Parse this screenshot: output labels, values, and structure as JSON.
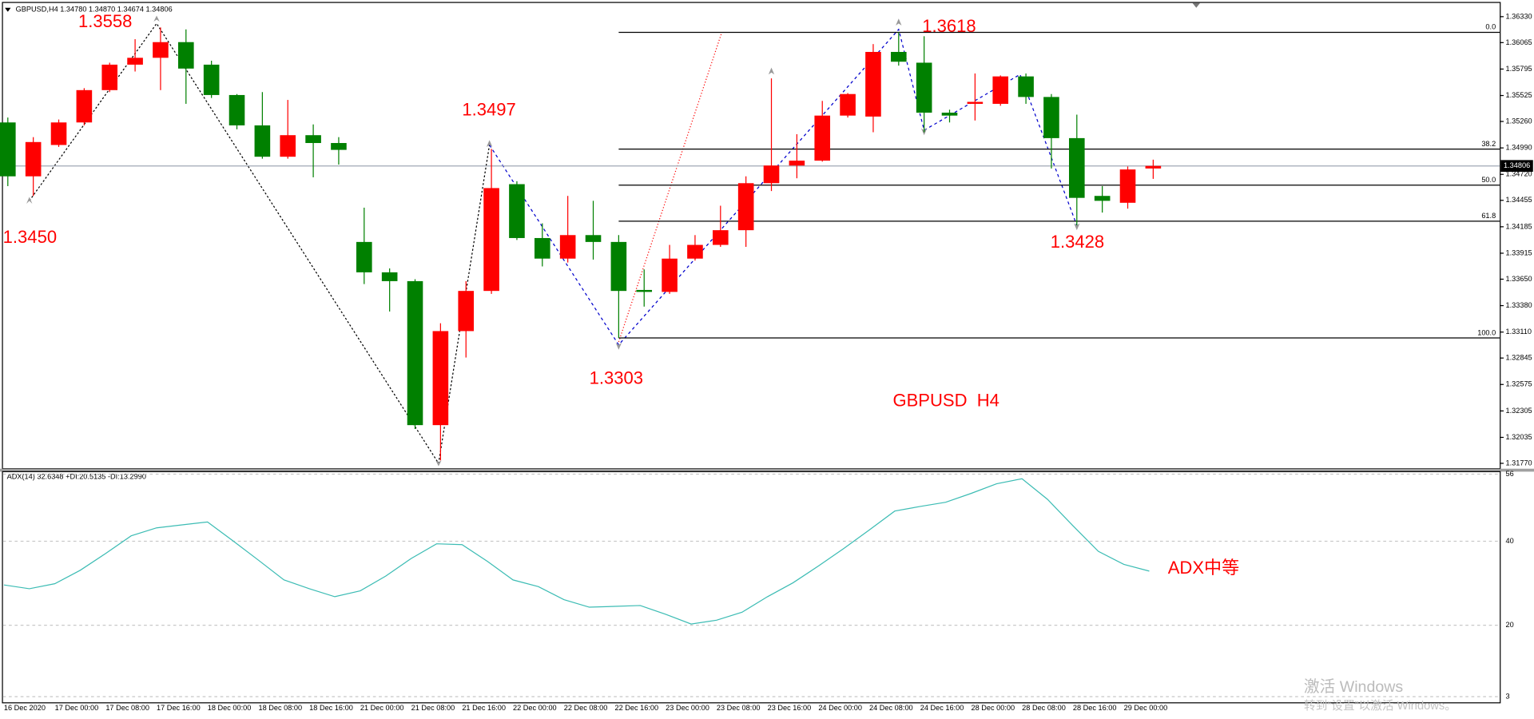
{
  "chart_data": {
    "type": "candlestick",
    "title": "GBPUSD,H4  1.34780 1.34870 1.34674 1.34806",
    "categories": [
      "16 Dec 2020",
      null,
      "17 Dec 00:00",
      null,
      "17 Dec 08:00",
      null,
      "17 Dec 16:00",
      null,
      "18 Dec 00:00",
      null,
      "18 Dec 08:00",
      null,
      "18 Dec 16:00",
      null,
      "21 Dec 00:00",
      null,
      "21 Dec 08:00",
      null,
      "21 Dec 16:00",
      null,
      "22 Dec 00:00",
      null,
      "22 Dec 08:00",
      null,
      "22 Dec 16:00",
      null,
      "23 Dec 00:00",
      null,
      "23 Dec 08:00",
      null,
      "23 Dec 16:00",
      null,
      "24 Dec 00:00",
      null,
      "24 Dec 08:00",
      null,
      "24 Dec 16:00",
      null,
      "28 Dec 00:00",
      null,
      "28 Dec 08:00",
      null,
      "28 Dec 16:00",
      null,
      "29 Dec 00:00",
      null
    ],
    "open": [
      1.3525,
      1.347,
      1.3502,
      1.3525,
      1.3558,
      1.3584,
      1.3591,
      1.3607,
      1.3584,
      1.3553,
      1.3522,
      1.349,
      1.3512,
      1.3504,
      1.3403,
      1.3372,
      1.3363,
      1.3216,
      1.3312,
      1.3353,
      1.3462,
      1.3407,
      1.3386,
      1.341,
      1.3403,
      1.3354,
      1.3352,
      1.3386,
      1.34,
      1.3415,
      1.3463,
      1.3481,
      1.3486,
      1.3532,
      1.3531,
      1.3597,
      1.3586,
      1.3535,
      1.3544,
      1.3544,
      1.3572,
      1.3551,
      1.3509,
      1.345,
      1.3443,
      1.3478
    ],
    "high": [
      1.353,
      1.351,
      1.3528,
      1.356,
      1.3586,
      1.361,
      1.3622,
      1.362,
      1.3588,
      1.3554,
      1.3556,
      1.3548,
      1.3523,
      1.351,
      1.3438,
      1.3376,
      1.3365,
      1.332,
      1.3363,
      1.3498,
      1.3465,
      1.3422,
      1.345,
      1.3445,
      1.341,
      1.3375,
      1.34,
      1.341,
      1.344,
      1.347,
      1.357,
      1.3513,
      1.3547,
      1.3555,
      1.3605,
      1.3617,
      1.3613,
      1.3538,
      1.3575,
      1.3573,
      1.3575,
      1.3554,
      1.3533,
      1.346,
      1.348,
      1.3487
    ],
    "low": [
      1.346,
      1.345,
      1.35,
      1.3522,
      1.3556,
      1.3577,
      1.3558,
      1.3544,
      1.355,
      1.3518,
      1.3488,
      1.3488,
      1.3469,
      1.3482,
      1.336,
      1.3332,
      1.3212,
      1.318,
      1.3285,
      1.335,
      1.3405,
      1.3378,
      1.3382,
      1.3385,
      1.3305,
      1.3337,
      1.335,
      1.3384,
      1.3398,
      1.3398,
      1.3455,
      1.3468,
      1.3485,
      1.353,
      1.3515,
      1.3583,
      1.3515,
      1.3525,
      1.3527,
      1.3542,
      1.3544,
      1.3478,
      1.342,
      1.3433,
      1.3437,
      1.34674
    ],
    "close": [
      1.347,
      1.3505,
      1.3525,
      1.3558,
      1.3584,
      1.3591,
      1.3607,
      1.358,
      1.3553,
      1.3522,
      1.349,
      1.3512,
      1.3504,
      1.3497,
      1.3372,
      1.3363,
      1.3216,
      1.3312,
      1.3353,
      1.3458,
      1.3407,
      1.3386,
      1.341,
      1.3403,
      1.3353,
      1.3352,
      1.3386,
      1.34,
      1.3415,
      1.3463,
      1.3481,
      1.3486,
      1.3532,
      1.3554,
      1.3597,
      1.3587,
      1.3535,
      1.3532,
      1.3546,
      1.3572,
      1.3551,
      1.3509,
      1.3448,
      1.3445,
      1.3477,
      1.34806
    ],
    "up_color": "#ff0000",
    "down_color": "#008000",
    "ylim": [
      1.3172,
      1.3647
    ],
    "yticks": [
      {
        "value": 1.3633,
        "label": "1.36330"
      },
      1.36065,
      1.35795,
      1.35525,
      {
        "value": 1.3526,
        "label": "1.35260"
      },
      {
        "value": 1.3499,
        "label": "1.34990"
      },
      {
        "value": 1.3472,
        "label": "1.34720"
      },
      1.34455,
      1.34185,
      1.33915,
      {
        "value": 1.3365,
        "label": "1.33650"
      },
      {
        "value": 1.3338,
        "label": "1.33380"
      },
      {
        "value": 1.3311,
        "label": "1.33110"
      },
      1.32845,
      1.32575,
      1.32305,
      1.32035,
      {
        "value": 1.3177,
        "label": "1.31770"
      }
    ],
    "last_price": {
      "value": 1.34806,
      "label": "1.34806"
    },
    "fibonacci": {
      "color": "#000000",
      "levels": [
        {
          "value": 0,
          "label": "0.0"
        },
        38.2,
        {
          "value": 50,
          "label": "50.0"
        },
        61.8,
        {
          "value": 100,
          "label": "100.0"
        }
      ]
    },
    "annotations": [
      "1.3558",
      "1.3450",
      "1.3497",
      "1.3303",
      "1.3618",
      "1.3428",
      "GBPUSD  H4",
      "ADX中等"
    ],
    "indicator": {
      "title": "ADX(14) 32.6348 +DI:20.5135 -DI:13.2990",
      "color": "#3cbcb4",
      "values": [
        29.6,
        28.7,
        29.9,
        33.1,
        37.1,
        41.3,
        43.2,
        43.9,
        44.6,
        40.1,
        35.5,
        30.8,
        28.7,
        26.8,
        28.2,
        31.7,
        35.9,
        39.4,
        39.2,
        35.2,
        30.8,
        29.2,
        26.1,
        24.3,
        24.5,
        24.7,
        22.6,
        20.3,
        21.2,
        23.1,
        26.8,
        30.1,
        34.1,
        38.3,
        42.7,
        47.2,
        48.3,
        49.3,
        51.4,
        53.7,
        54.9,
        50.0,
        43.7,
        37.6,
        34.5,
        32.9
      ],
      "ylim": [
        1.4,
        56.7
      ],
      "yticks": [
        56,
        40,
        20,
        3
      ],
      "grid": true
    },
    "watermark": [
      "激活 Windows",
      "转到“设置”以激活 Windows。"
    ]
  }
}
